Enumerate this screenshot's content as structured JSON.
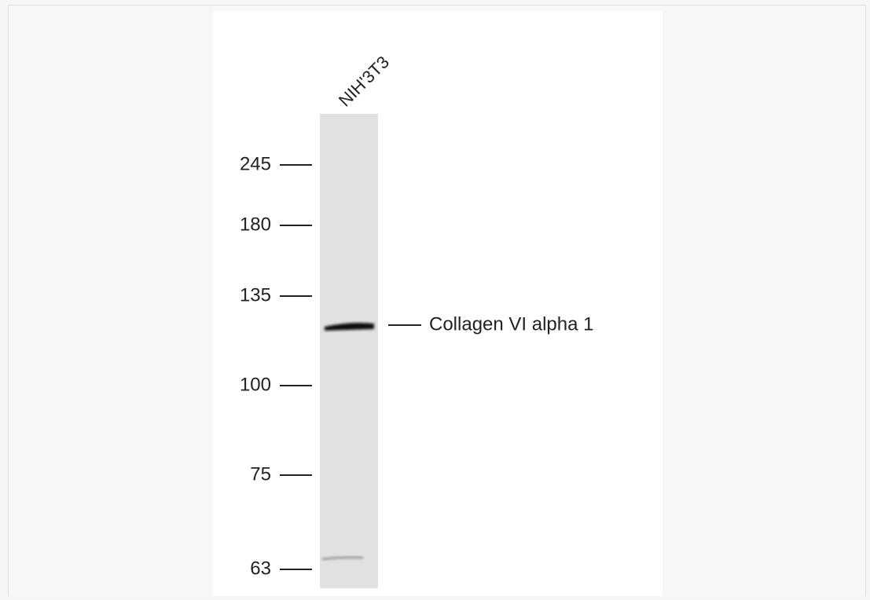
{
  "lane_label": "NIH'3T3",
  "markers": [
    245,
    180,
    135,
    100,
    75,
    63
  ],
  "band_label": "Collagen VI alpha 1"
}
